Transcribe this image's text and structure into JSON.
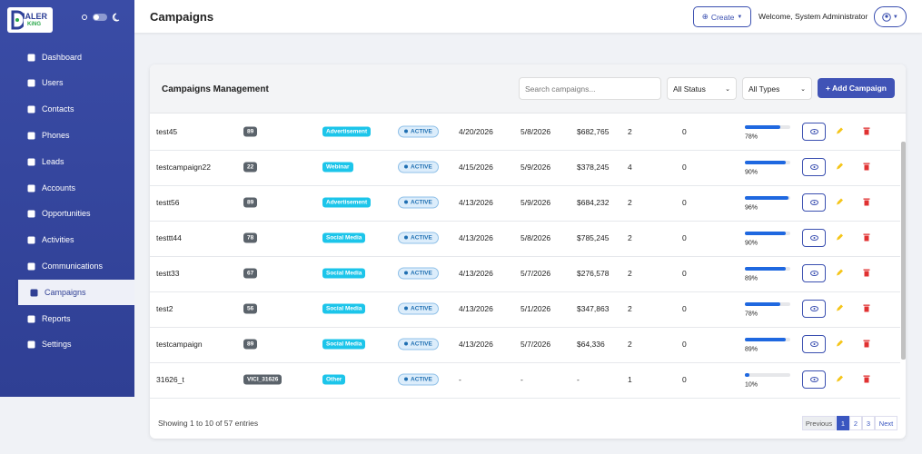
{
  "logo": {
    "main": "IALER",
    "sub": "KiNG"
  },
  "nav": [
    "Dashboard",
    "Users",
    "Contacts",
    "Phones",
    "Leads",
    "Accounts",
    "Opportunities",
    "Activities",
    "Communications",
    "Campaigns",
    "Reports",
    "Settings"
  ],
  "nav_active": 9,
  "header": {
    "title": "Campaigns",
    "create": "Create",
    "welcome": "Welcome, System Administrator"
  },
  "card": {
    "title": "Campaigns Management",
    "search_placeholder": "Search campaigns...",
    "status_filter": "All Status",
    "type_filter": "All Types",
    "add_button": "+ Add Campaign"
  },
  "table": {
    "rows": [
      [
        "test45",
        "89",
        "Advertisement",
        "ACTIVE",
        "4/20/2026",
        "5/8/2026",
        "$682,765",
        "2",
        "0",
        {
          "value": 78,
          "label": "78%"
        }
      ],
      [
        "testcampaign22",
        "22",
        "Webinar",
        "ACTIVE",
        "4/15/2026",
        "5/9/2026",
        "$378,245",
        "4",
        "0",
        {
          "value": 90,
          "label": "90%"
        }
      ],
      [
        "testt56",
        "89",
        "Advertisement",
        "ACTIVE",
        "4/13/2026",
        "5/9/2026",
        "$684,232",
        "2",
        "0",
        {
          "value": 96,
          "label": "96%"
        }
      ],
      [
        "testtt44",
        "78",
        "Social Media",
        "ACTIVE",
        "4/13/2026",
        "5/8/2026",
        "$785,245",
        "2",
        "0",
        {
          "value": 90,
          "label": "90%"
        }
      ],
      [
        "testt33",
        "67",
        "Social Media",
        "ACTIVE",
        "4/13/2026",
        "5/7/2026",
        "$276,578",
        "2",
        "0",
        {
          "value": 89,
          "label": "89%"
        }
      ],
      [
        "test2",
        "56",
        "Social Media",
        "ACTIVE",
        "4/13/2026",
        "5/1/2026",
        "$347,863",
        "2",
        "0",
        {
          "value": 78,
          "label": "78%"
        }
      ],
      [
        "testcampaign",
        "89",
        "Social Media",
        "ACTIVE",
        "4/13/2026",
        "5/7/2026",
        "$64,336",
        "2",
        "0",
        {
          "value": 89,
          "label": "89%"
        }
      ],
      [
        "31626_t",
        "VICI_31626",
        "Other",
        "ACTIVE",
        "-",
        "-",
        "-",
        "1",
        "0",
        {
          "value": 10,
          "label": "10%"
        }
      ]
    ]
  },
  "footer": {
    "summary": "Showing 1 to 10 of 57 entries",
    "pagination": [
      "Previous",
      "1",
      "2",
      "3",
      "Next"
    ],
    "active_page": 1
  }
}
